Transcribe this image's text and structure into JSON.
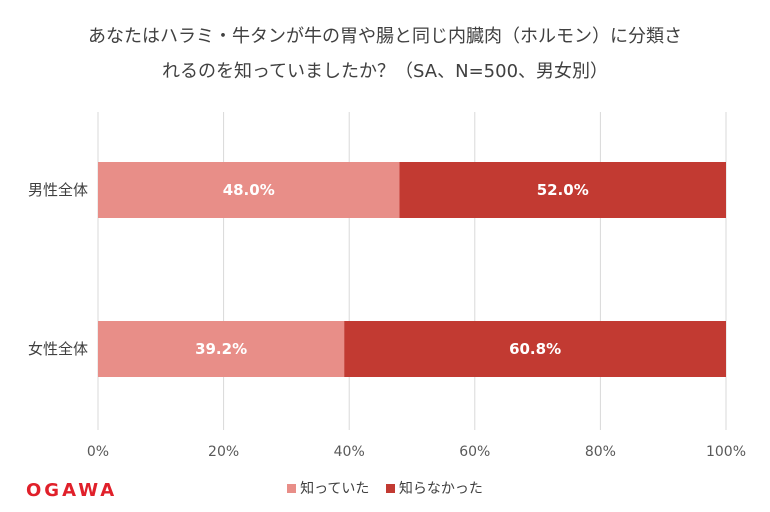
{
  "chart_data": {
    "type": "bar",
    "orientation": "horizontal",
    "stacked": true,
    "title_line1": "あなたはハラミ・牛タンが牛の胃や腸と同じ内臓肉（ホルモン）に分類さ",
    "title_line2": "れるのを知っていましたか？（SA、N=500、男女別）",
    "categories": [
      "男性全体",
      "女性全体"
    ],
    "series": [
      {
        "name": "知っていた",
        "color": "#e88e88",
        "values": [
          48.0,
          39.2
        ],
        "labels": [
          "48.0%",
          "39.2%"
        ]
      },
      {
        "name": "知らなかった",
        "color": "#c23a32",
        "values": [
          52.0,
          60.8
        ],
        "labels": [
          "52.0%",
          "60.8%"
        ]
      }
    ],
    "xlim": [
      0,
      100
    ],
    "xticks": [
      "0%",
      "20%",
      "40%",
      "60%",
      "80%",
      "100%"
    ],
    "grid": true,
    "legend": "bottom"
  },
  "brand": {
    "logo_text": "OGAWA",
    "logo_color": "#e0202a"
  }
}
